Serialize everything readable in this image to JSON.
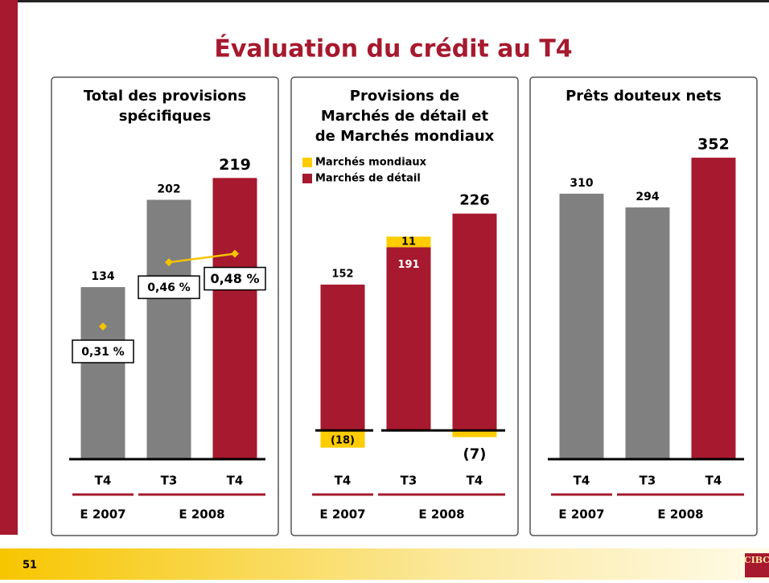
{
  "slide": {
    "title": "Évaluation du crédit au T4",
    "page_number": "51",
    "logo": "CIBC"
  },
  "chart_data": [
    {
      "type": "bar",
      "title": [
        "Total des provisions",
        "spécifiques"
      ],
      "categories": [
        "T4",
        "T3",
        "T4"
      ],
      "groups": [
        "E 2007",
        "E 2008"
      ],
      "ylim": [
        0,
        300
      ],
      "y2lim": [
        0,
        0.9
      ],
      "series": [
        {
          "values": [
            134,
            202,
            219
          ],
          "colors": [
            "#808080",
            "#808080",
            "#a6192e"
          ]
        },
        {
          "type": "line",
          "axis": "y2",
          "color": "#f5c400",
          "values": [
            0.31,
            0.46,
            0.48
          ],
          "value_labels": [
            "0,31 %",
            "0,46 %",
            "0,48 %"
          ]
        }
      ]
    },
    {
      "type": "stacked_bar",
      "title": [
        "Provisions de",
        "Marchés de détail et",
        "de Marchés mondiaux"
      ],
      "categories": [
        "T4",
        "T3",
        "T4"
      ],
      "groups": [
        "E 2007",
        "E 2008"
      ],
      "ylim": [
        -30,
        250
      ],
      "series": [
        {
          "name": "Marchés de détail",
          "color": "#a6192e",
          "values": [
            152,
            191,
            226
          ]
        },
        {
          "name": "Marchés mondiaux",
          "color": "#ffcc00",
          "values": [
            -18,
            11,
            -7
          ],
          "value_labels": [
            "(18)",
            "11",
            "(7)"
          ]
        }
      ]
    },
    {
      "type": "bar",
      "title": [
        "Prêts douteux nets"
      ],
      "categories": [
        "T4",
        "T3",
        "T4"
      ],
      "groups": [
        "E 2007",
        "E 2008"
      ],
      "ylim": [
        0,
        400
      ],
      "series": [
        {
          "values": [
            310,
            294,
            352
          ],
          "colors": [
            "#808080",
            "#808080",
            "#a6192e"
          ]
        }
      ]
    }
  ]
}
